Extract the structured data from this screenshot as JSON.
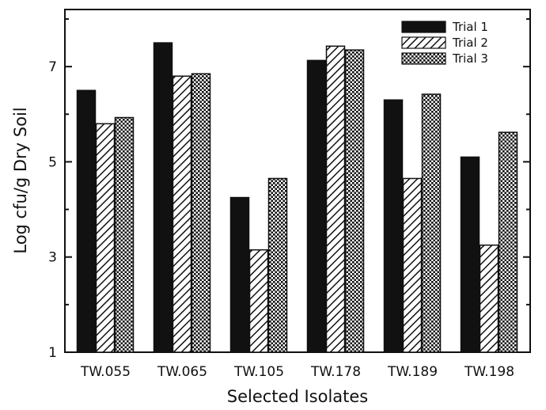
{
  "chart_data": {
    "type": "bar",
    "title": "",
    "xlabel": "Selected Isolates",
    "ylabel": "Log cfu/g Dry Soil",
    "ylim": [
      1,
      8.2
    ],
    "yticks": [
      "1",
      "3",
      "5",
      "7"
    ],
    "categories": [
      "TW.055",
      "TW.065",
      "TW.105",
      "TW.178",
      "TW.189",
      "TW.198"
    ],
    "series": [
      {
        "name": "Trial 1",
        "values": [
          6.5,
          7.5,
          4.25,
          7.13,
          6.3,
          5.1
        ],
        "fill": "solid",
        "color": "#111111"
      },
      {
        "name": "Trial 2",
        "values": [
          5.8,
          6.8,
          3.15,
          7.43,
          4.65,
          3.25
        ],
        "fill": "diagonal-hatch",
        "color": "#111111"
      },
      {
        "name": "Trial 3",
        "values": [
          5.93,
          6.85,
          4.65,
          7.35,
          6.42,
          5.62
        ],
        "fill": "crosshatch",
        "color": "#111111"
      }
    ],
    "legend_position": "top-right",
    "grid": false
  }
}
